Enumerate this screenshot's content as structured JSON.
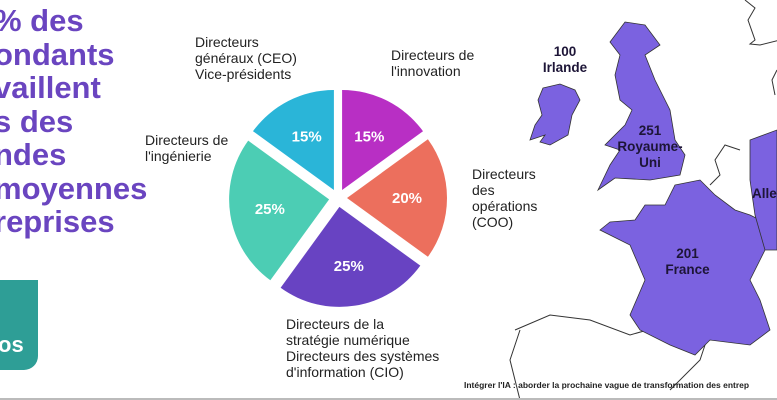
{
  "headline": "% des\nondants\nvaillent\ns des\nndes\nmoyennes\nreprises",
  "logo_text": "os",
  "chart_data": {
    "type": "pie",
    "slices": [
      {
        "label": "Directeurs de\nl'innovation",
        "value": 15,
        "display": "15%",
        "color": "#b82fc4"
      },
      {
        "label": "Directeurs\ndes\nopérations\n(COO)",
        "value": 20,
        "display": "20%",
        "color": "#ec6f5d"
      },
      {
        "label": "Directeurs de la\nstratégie numérique\nDirecteurs des systèmes\nd'information (CIO)",
        "value": 25,
        "display": "25%",
        "color": "#6843c2"
      },
      {
        "label": "Directeurs de\nl'ingénierie",
        "value": 25,
        "display": "25%",
        "color": "#4ccdb4"
      },
      {
        "label": "Directeurs\ngénéraux (CEO)\nVice-présidents",
        "value": 15,
        "display": "15%",
        "color": "#2ab5d8"
      }
    ]
  },
  "map": {
    "fill": "#7b62e0",
    "countries": [
      {
        "count": "100",
        "name": "Irlande"
      },
      {
        "count": "251",
        "name": "Royaume-\nUni"
      },
      {
        "count": "201",
        "name": "France"
      },
      {
        "count": "",
        "name": "Alle"
      }
    ]
  },
  "footer": "Intégrer l'IA : aborder la prochaine vague de transformation des entrep"
}
